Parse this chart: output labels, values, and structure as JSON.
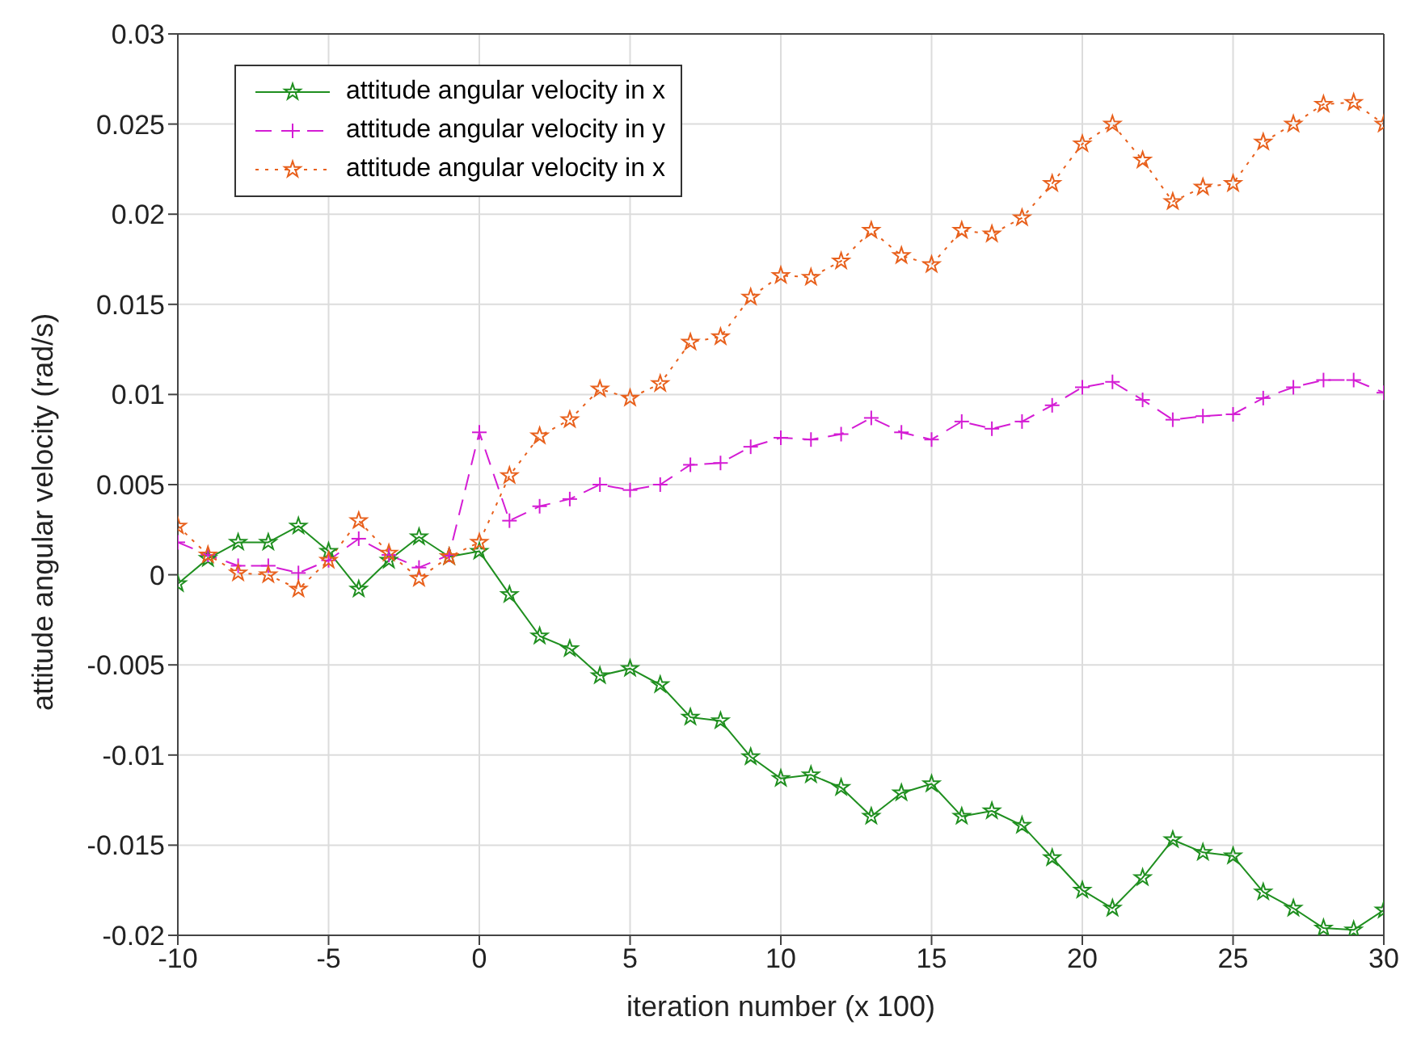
{
  "chart_data": {
    "type": "line",
    "xlabel": "iteration number (x 100)",
    "ylabel": "attitude angular velocity (rad/s)",
    "x": [
      -10,
      -9,
      -8,
      -7,
      -6,
      -5,
      -4,
      -3,
      -2,
      -1,
      0,
      1,
      2,
      3,
      4,
      5,
      6,
      7,
      8,
      9,
      10,
      11,
      12,
      13,
      14,
      15,
      16,
      17,
      18,
      19,
      20,
      21,
      22,
      23,
      24,
      25,
      26,
      27,
      28,
      29,
      30
    ],
    "xlim": [
      -10,
      30
    ],
    "xticks": [
      -10,
      -5,
      0,
      5,
      10,
      15,
      20,
      25,
      30
    ],
    "ylim": [
      -0.02,
      0.03
    ],
    "yticks": [
      -0.02,
      -0.015,
      -0.01,
      -0.005,
      0,
      0.005,
      0.01,
      0.015,
      0.02,
      0.025,
      0.03
    ],
    "grid": true,
    "legend": "top left",
    "series": [
      {
        "name": "attitude angular velocity in x",
        "color": "#1f8f1f",
        "marker": "star",
        "line_style": "solid",
        "values": [
          -0.0005,
          0.0009,
          0.0018,
          0.0018,
          0.0027,
          0.0013,
          -0.0008,
          0.0008,
          0.0021,
          0.001,
          0.0013,
          -0.0011,
          -0.0034,
          -0.0041,
          -0.0056,
          -0.0052,
          -0.0061,
          -0.0079,
          -0.0081,
          -0.0101,
          -0.0113,
          -0.0111,
          -0.0118,
          -0.0134,
          -0.0121,
          -0.0116,
          -0.0134,
          -0.0131,
          -0.0139,
          -0.0157,
          -0.0175,
          -0.0185,
          -0.0168,
          -0.0147,
          -0.0154,
          -0.0156,
          -0.0176,
          -0.0185,
          -0.0196,
          -0.0197,
          -0.0186
        ]
      },
      {
        "name": "attitude angular velocity in y",
        "color": "#d41cd4",
        "marker": "cross",
        "line_style": "dashed",
        "values": [
          0.0018,
          0.0011,
          0.0005,
          0.0005,
          0.0001,
          0.0008,
          0.002,
          0.0011,
          0.0004,
          0.0011,
          0.0079,
          0.003,
          0.0038,
          0.0042,
          0.005,
          0.0047,
          0.005,
          0.0061,
          0.0062,
          0.0071,
          0.0076,
          0.0075,
          0.0078,
          0.0087,
          0.0079,
          0.0075,
          0.0085,
          0.0081,
          0.0085,
          0.0094,
          0.0104,
          0.0107,
          0.0097,
          0.0086,
          0.0088,
          0.0089,
          0.0098,
          0.0104,
          0.0108,
          0.0108,
          0.0101
        ]
      },
      {
        "name": "attitude angular velocity in x",
        "color": "#e8601c",
        "marker": "star",
        "line_style": "dotted",
        "values": [
          0.0027,
          0.0011,
          0.0001,
          0,
          -0.0008,
          0.0008,
          0.003,
          0.0012,
          -0.0002,
          0.001,
          0.0018,
          0.0055,
          0.0077,
          0.0086,
          0.0103,
          0.0098,
          0.0106,
          0.0129,
          0.0132,
          0.0154,
          0.0166,
          0.0165,
          0.0174,
          0.0191,
          0.0177,
          0.0172,
          0.0191,
          0.0189,
          0.0198,
          0.0217,
          0.0239,
          0.025,
          0.023,
          0.0207,
          0.0215,
          0.0217,
          0.024,
          0.025,
          0.0261,
          0.0262,
          0.025
        ]
      }
    ]
  }
}
